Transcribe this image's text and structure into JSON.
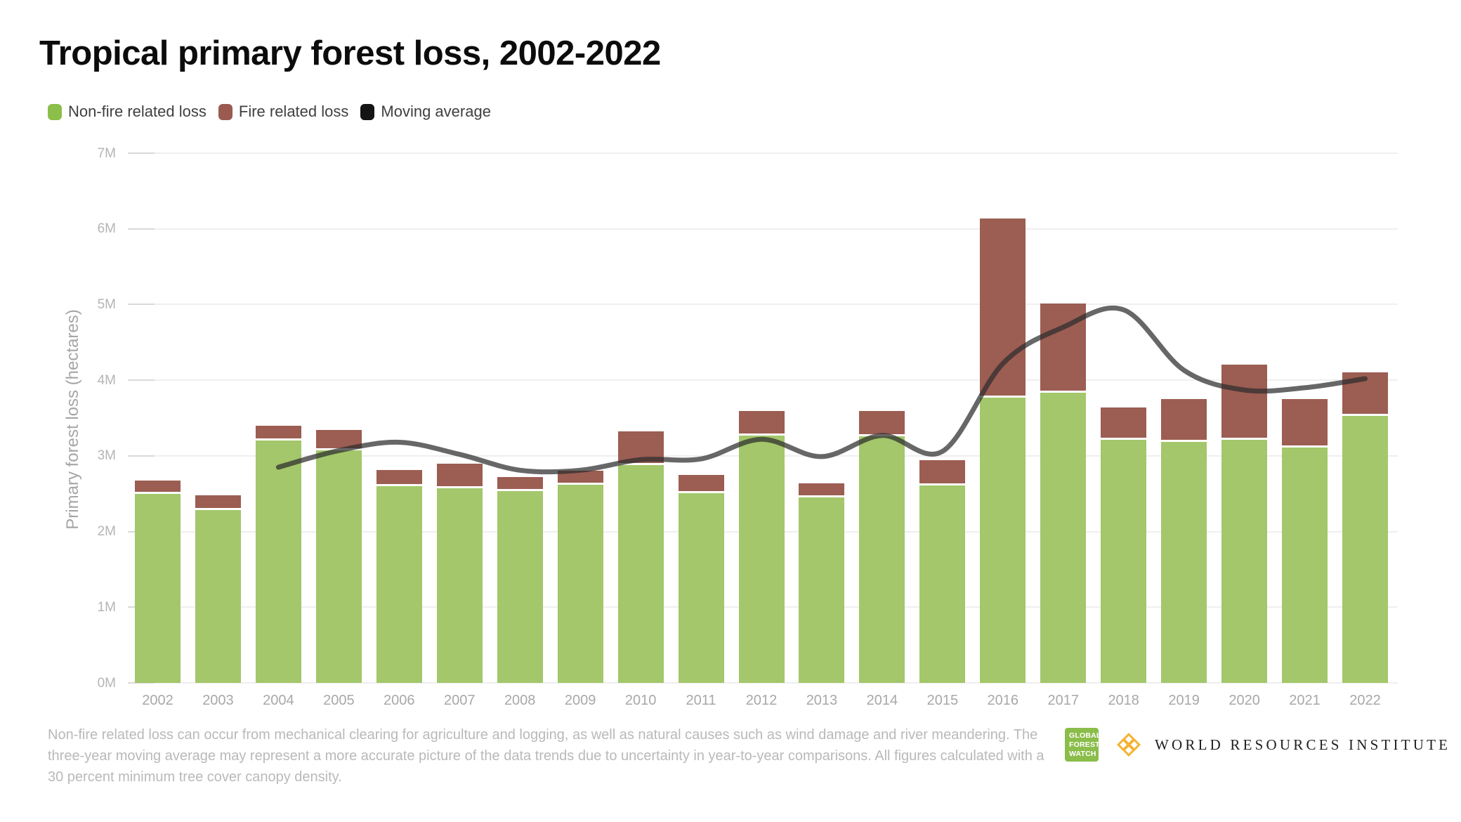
{
  "header": {
    "title": "Tropical primary forest loss, 2002-2022"
  },
  "legend": {
    "items": [
      {
        "label": "Non-fire related loss",
        "color": "#8cbe4a"
      },
      {
        "label": "Fire related loss",
        "color": "#9b5a50"
      },
      {
        "label": "Moving average",
        "color": "#141414"
      }
    ]
  },
  "y_axis": {
    "title": "Primary forest loss (hectares)",
    "ticks": [
      "0M",
      "1M",
      "2M",
      "3M",
      "4M",
      "5M",
      "6M",
      "7M"
    ]
  },
  "footer": {
    "note": "Non-fire related loss can occur from mechanical clearing for agriculture and logging, as well as natural causes such as wind damage and river meandering. The three-year moving average may represent a more accurate picture of the data trends due to uncertainty in year-to-year comparisons. All figures calculated with a 30 percent minimum tree cover canopy density."
  },
  "logos": {
    "gfw_lines": [
      "GLOBAL",
      "FOREST",
      "WATCH"
    ],
    "gfw_color": "#8bbd4a",
    "wri_name": "WORLD RESOURCES INSTITUTE",
    "wri_icon_color": "#f5b335"
  },
  "colors": {
    "bar_non_fire": "#a3c76a",
    "bar_fire": "#9c5d52",
    "moving_average": "rgba(45,45,45,0.72)",
    "grid": "#efefef",
    "tick": "#d9d9d9"
  },
  "chart_data": {
    "type": "bar",
    "stacked": true,
    "value_unit": "million hectares",
    "title": "Tropical primary forest loss, 2002-2022",
    "xlabel": "",
    "ylabel": "Primary forest loss (hectares)",
    "ylim": [
      0,
      7
    ],
    "ytick_step": 1,
    "grid": "horizontal",
    "legend_position": "top-left",
    "categories": [
      "2002",
      "2003",
      "2004",
      "2005",
      "2006",
      "2007",
      "2008",
      "2009",
      "2010",
      "2011",
      "2012",
      "2013",
      "2014",
      "2015",
      "2016",
      "2017",
      "2018",
      "2019",
      "2020",
      "2021",
      "2022"
    ],
    "series": [
      {
        "name": "Non-fire related loss",
        "type": "bar",
        "values": [
          2.5,
          2.28,
          3.2,
          3.07,
          2.6,
          2.57,
          2.53,
          2.62,
          2.88,
          2.51,
          3.27,
          2.45,
          3.26,
          2.61,
          3.77,
          3.83,
          3.21,
          3.18,
          3.21,
          3.11,
          3.53
        ]
      },
      {
        "name": "Fire related loss",
        "type": "bar",
        "values": [
          0.17,
          0.2,
          0.2,
          0.27,
          0.21,
          0.33,
          0.19,
          0.18,
          0.44,
          0.24,
          0.32,
          0.19,
          0.33,
          0.33,
          2.37,
          1.18,
          0.43,
          0.57,
          1.0,
          0.64,
          0.57
        ]
      },
      {
        "name": "Moving average",
        "type": "line",
        "values": [
          null,
          null,
          2.85,
          3.07,
          3.18,
          3.02,
          2.81,
          2.81,
          2.95,
          2.96,
          3.22,
          2.99,
          3.27,
          3.06,
          4.22,
          4.7,
          4.93,
          4.13,
          3.87,
          3.9,
          4.02
        ]
      }
    ]
  }
}
